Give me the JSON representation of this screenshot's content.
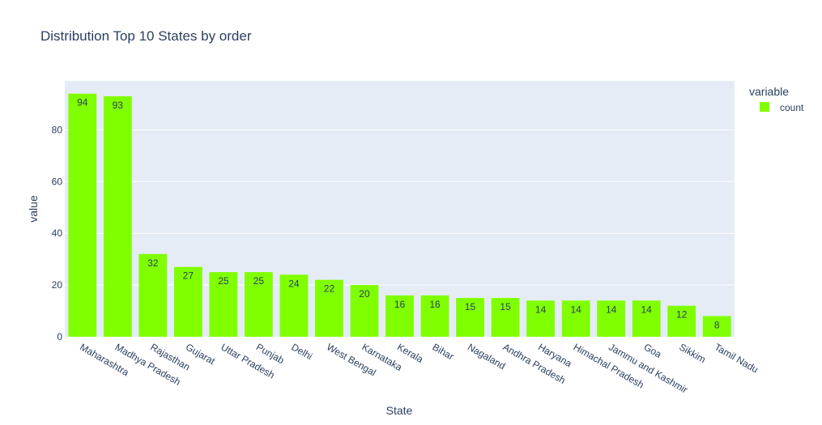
{
  "chart_data": {
    "type": "bar",
    "title": "Distribution Top 10 States by order",
    "xlabel": "State",
    "ylabel": "value",
    "categories": [
      "Maharashtra",
      "Madhya Pradesh",
      "Rajasthan",
      "Gujarat",
      "Uttar Pradesh",
      "Punjab",
      "Delhi",
      "West Bengal",
      "Karnataka",
      "Kerala",
      "Bihar",
      "Nagaland",
      "Andhra Pradesh",
      "Haryana",
      "Himachal Pradesh",
      "Jammu and Kashmir",
      "Goa",
      "Sikkim",
      "Tamil Nadu"
    ],
    "series": [
      {
        "name": "count",
        "values": [
          94,
          93,
          32,
          27,
          25,
          25,
          24,
          22,
          20,
          16,
          16,
          15,
          15,
          14,
          14,
          14,
          14,
          12,
          8
        ],
        "color": "#7fff00"
      }
    ],
    "ylim": [
      0,
      98.9
    ],
    "yticks": [
      0,
      20,
      40,
      60,
      80
    ],
    "grid": true,
    "legend": {
      "title": "variable",
      "placement": "top-right"
    },
    "background": "#e5ecf6"
  }
}
